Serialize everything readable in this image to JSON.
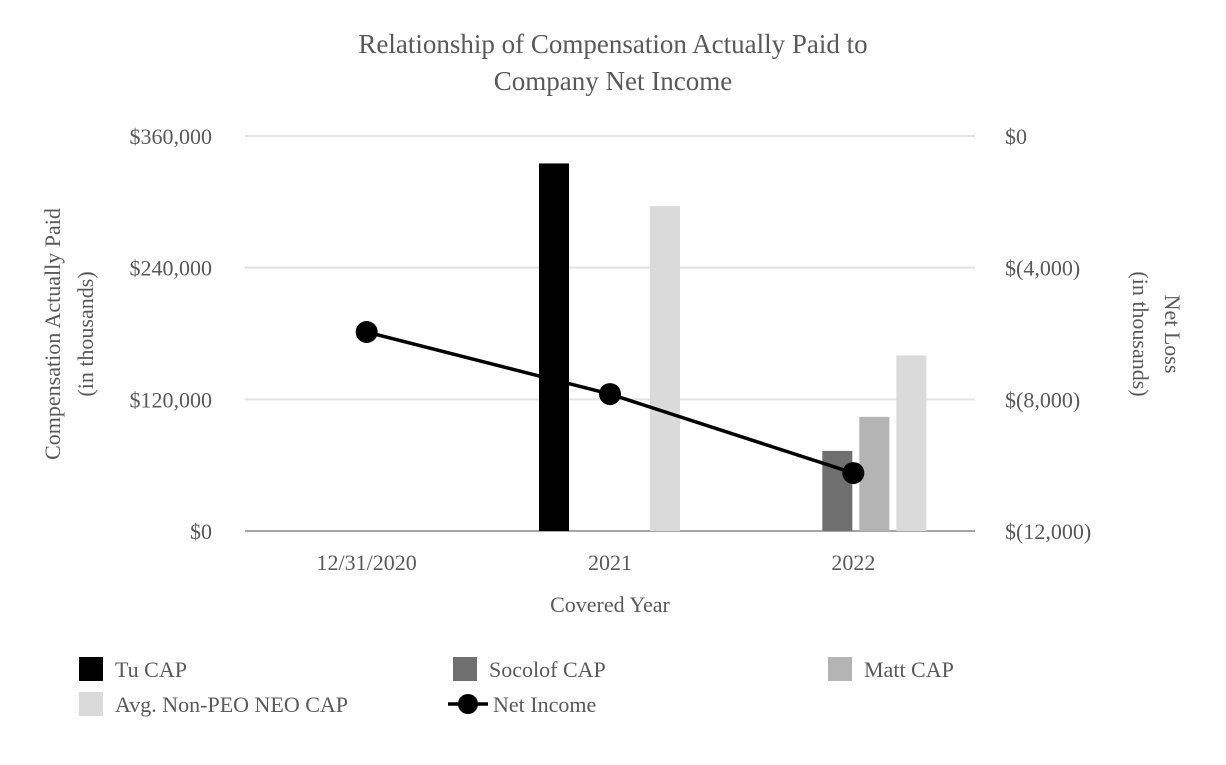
{
  "chart_data": {
    "type": "bar",
    "title": "Relationship of Compensation Actually Paid to Company Net Income",
    "title_lines": [
      "Relationship of Compensation Actually Paid to",
      "Company Net Income"
    ],
    "xlabel": "Covered Year",
    "ylabel_lines": [
      "Compensation Actually Paid",
      "(in thousands)"
    ],
    "y2label_lines": [
      "Net Loss",
      "(in thousands)"
    ],
    "categories": [
      "12/31/2020",
      "2021",
      "2022"
    ],
    "ylim": [
      0,
      360000
    ],
    "y_ticks": [
      0,
      120000,
      240000,
      360000
    ],
    "y_tick_labels": [
      "$0",
      "$120,000",
      "$240,000",
      "$360,000"
    ],
    "y2lim": [
      -12000,
      0
    ],
    "y2_ticks": [
      -12000,
      -8000,
      -4000,
      0
    ],
    "y2_tick_labels": [
      "$(12,000)",
      "$(8,000)",
      "$(4,000)",
      "$0"
    ],
    "grid": true,
    "legend_position": "bottom",
    "series": [
      {
        "name": "Tu CAP",
        "type": "bar",
        "axis": "left",
        "color": "#000000",
        "values": [
          null,
          335000,
          null
        ]
      },
      {
        "name": "Socolof CAP",
        "type": "bar",
        "axis": "left",
        "color": "#6f6f6f",
        "values": [
          null,
          null,
          73000
        ]
      },
      {
        "name": "Matt CAP",
        "type": "bar",
        "axis": "left",
        "color": "#b4b4b4",
        "values": [
          null,
          null,
          104000
        ]
      },
      {
        "name": "Avg. Non-PEO NEO CAP",
        "type": "bar",
        "axis": "left",
        "color": "#dadada",
        "values": [
          null,
          296000,
          160000
        ]
      },
      {
        "name": "Net Income",
        "type": "line",
        "axis": "right",
        "color": "#000000",
        "values": [
          -5955,
          -7840,
          -10240
        ]
      }
    ]
  }
}
